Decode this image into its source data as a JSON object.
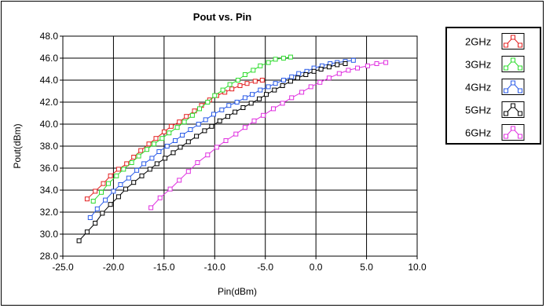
{
  "chart_data": {
    "type": "line",
    "title": "Pout vs. Pin",
    "xlabel": "Pin(dBm)",
    "ylabel": "Pout(dBm)",
    "xlim": [
      -25.0,
      10.0
    ],
    "ylim": [
      28.0,
      48.0
    ],
    "xticks": [
      "-25.0",
      "-20.0",
      "-15.0",
      "-10.0",
      "-5.0",
      "0.0",
      "5.0",
      "10.0"
    ],
    "yticks": [
      "28.0",
      "30.0",
      "32.0",
      "34.0",
      "36.0",
      "38.0",
      "40.0",
      "42.0",
      "44.0",
      "46.0",
      "48.0"
    ],
    "grid": true,
    "legend_position": "top-right",
    "series": [
      {
        "name": "2GHz",
        "color": "#e32020",
        "x": [
          -22.6,
          -21.8,
          -21.0,
          -20.3,
          -19.5,
          -18.7,
          -18.0,
          -17.3,
          -16.5,
          -15.8,
          -15.0,
          -14.3,
          -13.5,
          -12.8,
          -12.0,
          -11.3,
          -10.5,
          -9.8,
          -9.0,
          -8.3,
          -7.5,
          -6.8,
          -6.0,
          -5.3
        ],
        "y": [
          33.2,
          33.9,
          34.6,
          35.3,
          35.9,
          36.4,
          37.0,
          37.6,
          38.2,
          38.7,
          39.3,
          39.8,
          40.2,
          40.7,
          41.2,
          41.7,
          42.2,
          42.6,
          42.9,
          43.2,
          43.5,
          43.7,
          43.9,
          44.0
        ]
      },
      {
        "name": "3GHz",
        "color": "#2edc2e",
        "x": [
          -22.0,
          -21.2,
          -20.5,
          -19.7,
          -19.0,
          -18.2,
          -17.5,
          -16.7,
          -16.0,
          -15.2,
          -14.5,
          -13.7,
          -13.0,
          -12.2,
          -11.5,
          -10.7,
          -10.0,
          -9.2,
          -8.5,
          -7.7,
          -7.0,
          -6.2,
          -5.5,
          -4.7,
          -4.0,
          -3.2,
          -2.5
        ],
        "y": [
          33.0,
          33.8,
          34.6,
          35.3,
          35.9,
          36.5,
          37.1,
          37.7,
          38.2,
          38.7,
          39.2,
          39.7,
          40.2,
          40.8,
          41.4,
          42.0,
          42.6,
          43.1,
          43.6,
          44.0,
          44.5,
          44.9,
          45.3,
          45.6,
          45.9,
          46.0,
          46.1
        ]
      },
      {
        "name": "4GHz",
        "color": "#2a5be8",
        "x": [
          -22.3,
          -21.6,
          -20.8,
          -20.0,
          -19.3,
          -18.5,
          -17.7,
          -17.0,
          -16.2,
          -15.5,
          -14.7,
          -13.9,
          -13.2,
          -12.4,
          -11.6,
          -10.9,
          -10.1,
          -9.3,
          -8.6,
          -7.8,
          -7.0,
          -6.3,
          -5.5,
          -4.7,
          -4.0,
          -3.2,
          -2.4,
          -1.7,
          -0.9,
          -0.2,
          0.6,
          1.4,
          2.1,
          2.9,
          3.7
        ],
        "y": [
          31.5,
          32.3,
          33.1,
          33.9,
          34.5,
          35.1,
          35.8,
          36.4,
          36.9,
          37.5,
          38.0,
          38.5,
          39.0,
          39.5,
          40.0,
          40.4,
          40.9,
          41.3,
          41.7,
          42.0,
          42.4,
          42.7,
          43.1,
          43.4,
          43.7,
          44.0,
          44.3,
          44.6,
          44.8,
          45.1,
          45.3,
          45.5,
          45.6,
          45.7,
          45.8
        ]
      },
      {
        "name": "5GHz",
        "color": "#000000",
        "x": [
          -23.4,
          -22.6,
          -21.8,
          -21.1,
          -20.3,
          -19.5,
          -18.8,
          -18.0,
          -17.2,
          -16.4,
          -15.7,
          -14.9,
          -14.1,
          -13.4,
          -12.6,
          -11.8,
          -11.0,
          -10.3,
          -9.5,
          -8.7,
          -8.0,
          -7.2,
          -6.4,
          -5.6,
          -4.9,
          -4.1,
          -3.3,
          -2.5,
          -1.8,
          -1.0,
          -0.2,
          0.5,
          1.3,
          2.1,
          2.9
        ],
        "y": [
          29.4,
          30.2,
          31.0,
          31.9,
          32.7,
          33.4,
          34.1,
          34.7,
          35.3,
          35.9,
          36.4,
          36.9,
          37.4,
          37.9,
          38.4,
          38.9,
          39.4,
          39.8,
          40.3,
          40.7,
          41.1,
          41.5,
          41.9,
          42.3,
          42.7,
          43.1,
          43.5,
          43.9,
          44.2,
          44.5,
          44.8,
          45.0,
          45.2,
          45.4,
          45.5
        ]
      },
      {
        "name": "6GHz",
        "color": "#e030e0",
        "x": [
          -16.3,
          -15.4,
          -14.4,
          -13.5,
          -12.6,
          -11.7,
          -10.7,
          -9.8,
          -8.9,
          -7.9,
          -7.0,
          -6.1,
          -5.2,
          -4.2,
          -3.3,
          -2.4,
          -1.4,
          -0.5,
          0.4,
          1.3,
          2.3,
          3.2,
          4.1,
          5.1,
          6.0,
          6.9
        ],
        "y": [
          32.4,
          33.3,
          34.1,
          34.9,
          35.7,
          36.5,
          37.2,
          37.9,
          38.5,
          39.1,
          39.7,
          40.3,
          40.8,
          41.4,
          41.9,
          42.4,
          42.9,
          43.4,
          43.8,
          44.2,
          44.6,
          44.9,
          45.1,
          45.3,
          45.5,
          45.6
        ]
      }
    ]
  }
}
